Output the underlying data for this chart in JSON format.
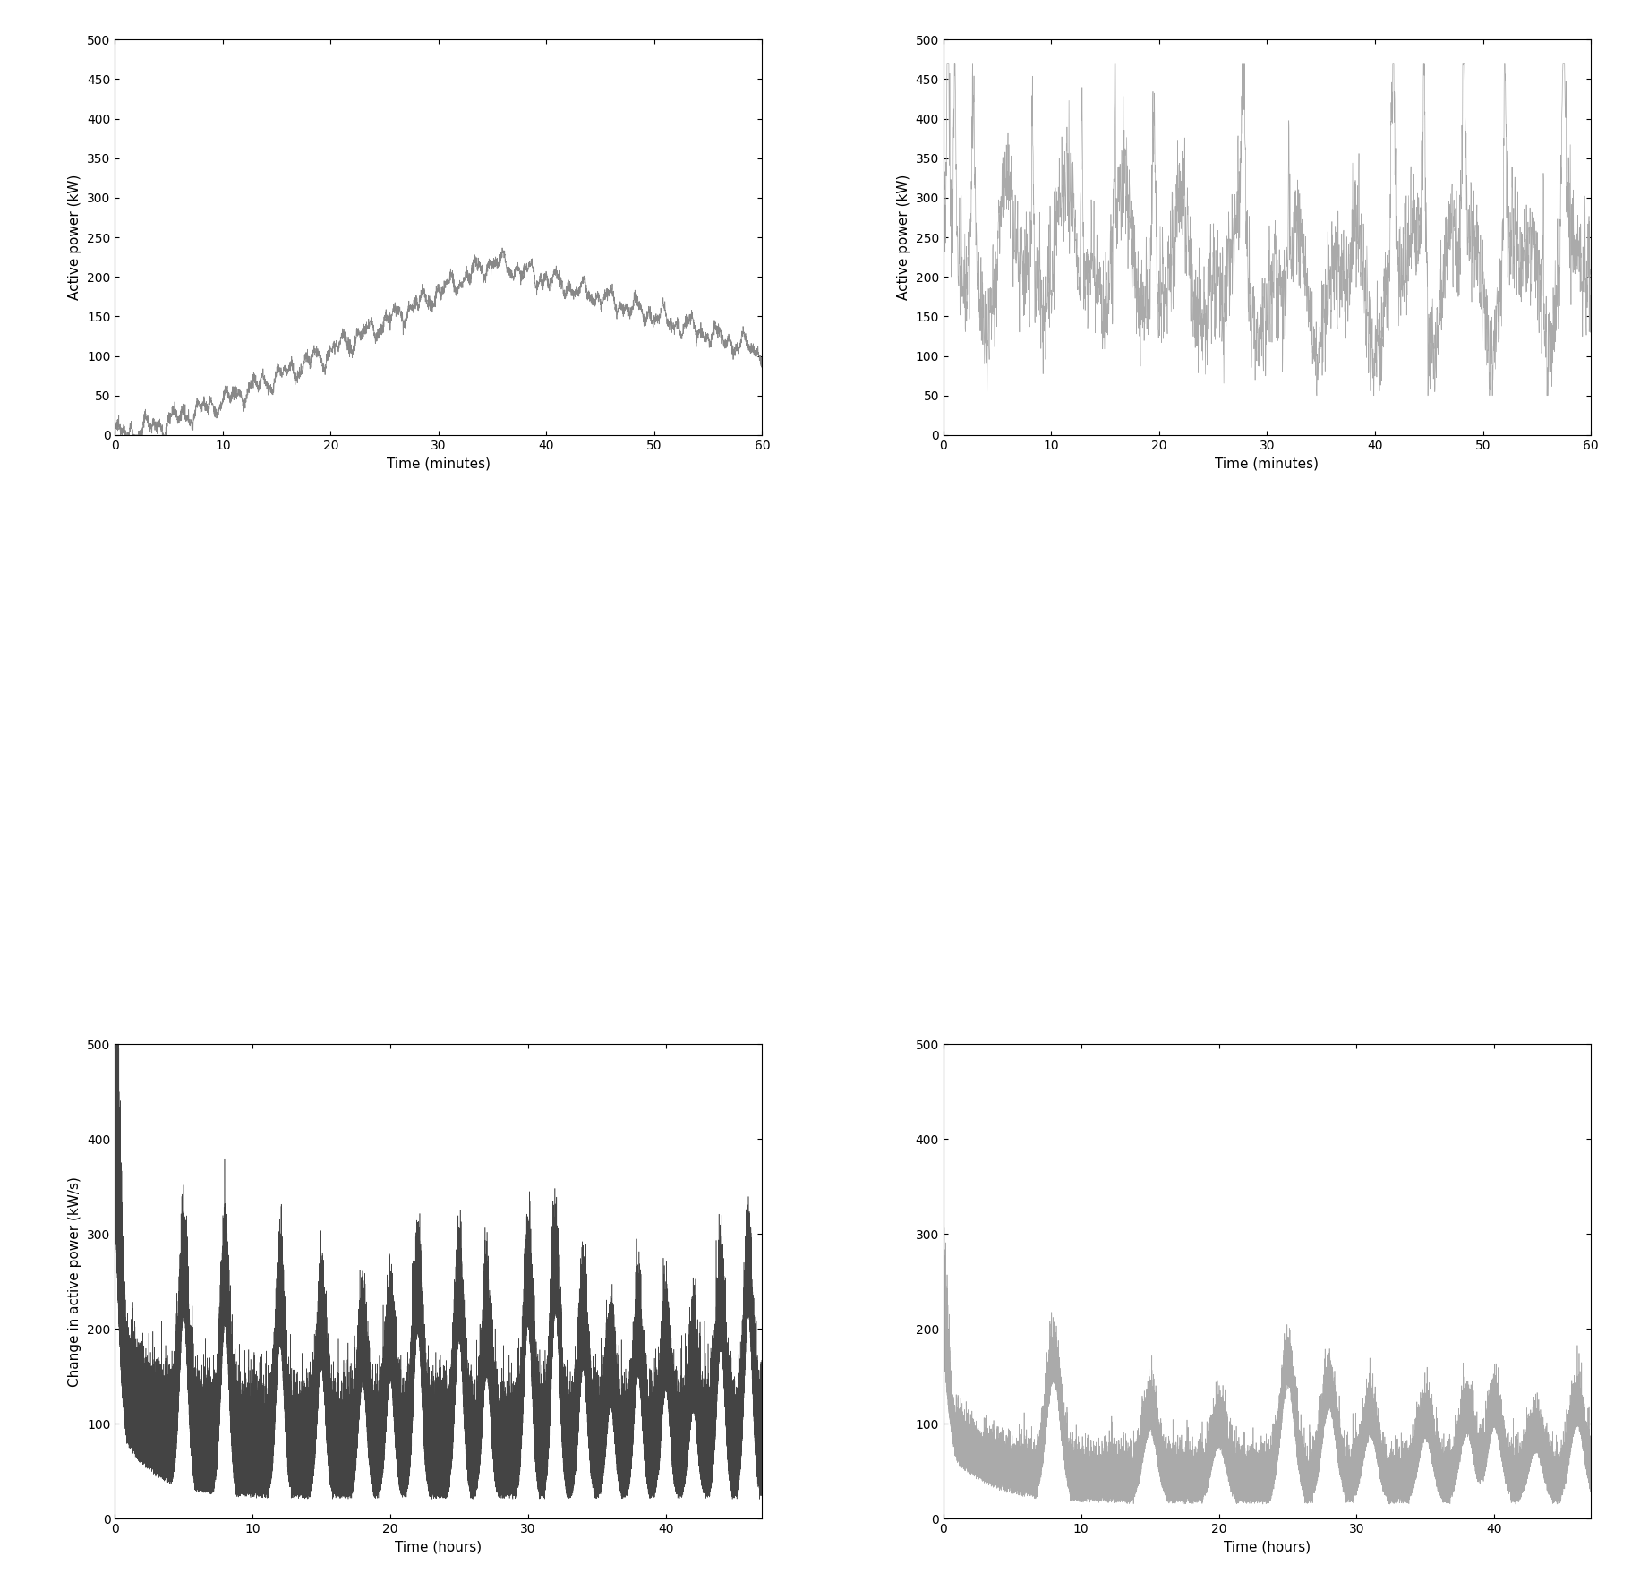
{
  "fig_width": 18.32,
  "fig_height": 17.67,
  "dpi": 100,
  "background_color": "#ffffff",
  "subplots": [
    {
      "xlabel": "Time (minutes)",
      "ylabel": "Active power (kW)",
      "xlim": [
        0,
        60
      ],
      "ylim": [
        0,
        500
      ],
      "xticks": [
        0,
        10,
        20,
        30,
        40,
        50,
        60
      ],
      "yticks": [
        0,
        50,
        100,
        150,
        200,
        250,
        300,
        350,
        400,
        450,
        500
      ],
      "color": "#888888",
      "lw": 0.6
    },
    {
      "xlabel": "Time (minutes)",
      "ylabel": "Active power (kW)",
      "xlim": [
        0,
        60
      ],
      "ylim": [
        0,
        500
      ],
      "xticks": [
        0,
        10,
        20,
        30,
        40,
        50,
        60
      ],
      "yticks": [
        0,
        50,
        100,
        150,
        200,
        250,
        300,
        350,
        400,
        450,
        500
      ],
      "color": "#aaaaaa",
      "lw": 0.5
    },
    {
      "xlabel": "Time (hours)",
      "ylabel": "Change in active power (kW/s)",
      "xlim": [
        0,
        47
      ],
      "ylim": [
        0,
        500
      ],
      "xticks": [
        0,
        10,
        20,
        30,
        40
      ],
      "yticks": [
        0,
        100,
        200,
        300,
        400,
        500
      ],
      "color": "#444444",
      "lw": 0.4
    },
    {
      "xlabel": "Time (hours)",
      "ylabel": "",
      "xlim": [
        0,
        47
      ],
      "ylim": [
        0,
        500
      ],
      "xticks": [
        0,
        10,
        20,
        30,
        40
      ],
      "yticks": [
        0,
        100,
        200,
        300,
        400,
        500
      ],
      "color": "#aaaaaa",
      "lw": 0.5
    }
  ]
}
